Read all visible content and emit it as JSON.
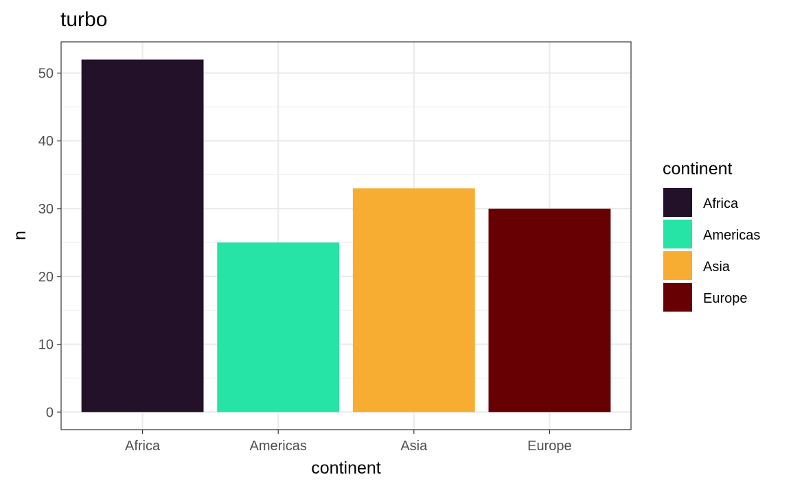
{
  "chart_data": {
    "type": "bar",
    "title": "turbo",
    "xlabel": "continent",
    "ylabel": "n",
    "categories": [
      "Africa",
      "Americas",
      "Asia",
      "Europe"
    ],
    "values": [
      52,
      25,
      33,
      30
    ],
    "colors": [
      "#231029",
      "#26e3a6",
      "#f6ad31",
      "#660003"
    ],
    "ylim": [
      -2.6,
      54.6
    ],
    "yticks": [
      0,
      10,
      20,
      30,
      40,
      50
    ],
    "grid": true,
    "legend": {
      "title": "continent",
      "position": "right",
      "entries": [
        "Africa",
        "Americas",
        "Asia",
        "Europe"
      ]
    }
  }
}
